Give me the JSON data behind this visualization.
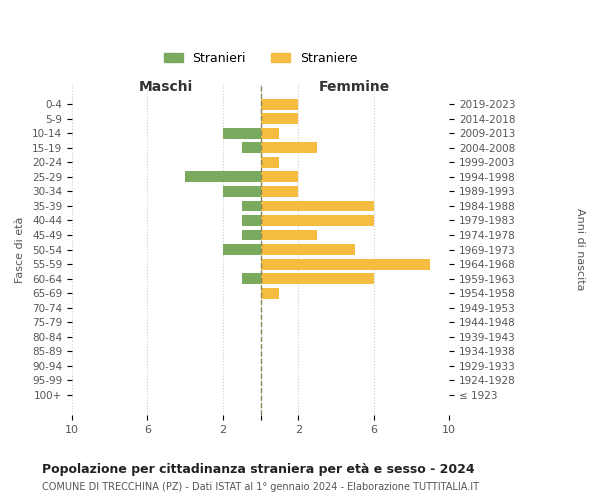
{
  "age_groups": [
    "100+",
    "95-99",
    "90-94",
    "85-89",
    "80-84",
    "75-79",
    "70-74",
    "65-69",
    "60-64",
    "55-59",
    "50-54",
    "45-49",
    "40-44",
    "35-39",
    "30-34",
    "25-29",
    "20-24",
    "15-19",
    "10-14",
    "5-9",
    "0-4"
  ],
  "birth_years": [
    "≤ 1923",
    "1924-1928",
    "1929-1933",
    "1934-1938",
    "1939-1943",
    "1944-1948",
    "1949-1953",
    "1954-1958",
    "1959-1963",
    "1964-1968",
    "1969-1973",
    "1974-1978",
    "1979-1983",
    "1984-1988",
    "1989-1993",
    "1994-1998",
    "1999-2003",
    "2004-2008",
    "2009-2013",
    "2014-2018",
    "2019-2023"
  ],
  "maschi": [
    0,
    0,
    0,
    0,
    0,
    0,
    0,
    0,
    1,
    0,
    2,
    1,
    1,
    1,
    2,
    4,
    0,
    1,
    2,
    0,
    0
  ],
  "femmine": [
    0,
    0,
    0,
    0,
    0,
    0,
    0,
    1,
    6,
    9,
    5,
    3,
    6,
    6,
    2,
    2,
    1,
    3,
    1,
    2,
    2
  ],
  "maschi_color": "#7aaa5e",
  "femmine_color": "#f5bc42",
  "dashed_line_color": "#888855",
  "title": "Popolazione per cittadinanza straniera per età e sesso - 2024",
  "subtitle": "COMUNE DI TRECCHINA (PZ) - Dati ISTAT al 1° gennaio 2024 - Elaborazione TUTTITALIA.IT",
  "xlabel_left": "Maschi",
  "xlabel_right": "Femmine",
  "ylabel": "Fasce di età",
  "ylabel_right": "Anni di nascita",
  "legend_maschi": "Stranieri",
  "legend_femmine": "Straniere",
  "xlim": 10,
  "background_color": "#ffffff",
  "grid_color": "#cccccc"
}
